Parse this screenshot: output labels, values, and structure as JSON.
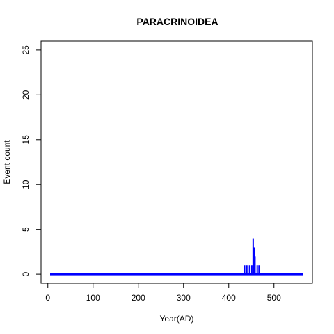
{
  "chart_data": {
    "type": "line",
    "title": "PARACRINOIDEA",
    "xlabel": "Year(AD)",
    "ylabel": "Event count",
    "xlim": [
      -15,
      585
    ],
    "ylim": [
      -1,
      26
    ],
    "x_ticks": [
      0,
      100,
      200,
      300,
      400,
      500
    ],
    "y_ticks": [
      0,
      5,
      10,
      15,
      20,
      25
    ],
    "grid": false,
    "legend": "none",
    "series_color": "#0000ff",
    "baseline": {
      "x_start": 5,
      "x_end": 565,
      "y": 0
    },
    "events": [
      {
        "x": 435,
        "y": 1
      },
      {
        "x": 440,
        "y": 1
      },
      {
        "x": 446,
        "y": 1
      },
      {
        "x": 451,
        "y": 1
      },
      {
        "x": 454,
        "y": 4
      },
      {
        "x": 456,
        "y": 3
      },
      {
        "x": 458,
        "y": 2
      },
      {
        "x": 463,
        "y": 1
      },
      {
        "x": 467,
        "y": 1
      }
    ]
  }
}
